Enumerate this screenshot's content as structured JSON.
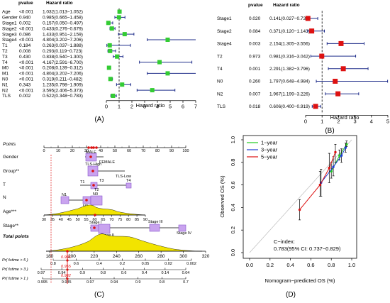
{
  "panel_labels": [
    "(A)",
    "(B)",
    "(C)",
    "(D)"
  ],
  "chart_data": [
    {
      "type": "forest",
      "panel": "(A)",
      "col_pvalue": "pvalue",
      "col_hr": "Hazard ratio",
      "xlabel": "Hazard ratio",
      "xlim": [
        0,
        7
      ],
      "xticks": [
        "0",
        "1",
        "2",
        "3",
        "4",
        "5",
        "6",
        "7"
      ],
      "ref_line": 1,
      "color_box": "#33cc33",
      "color_ci": "#1f2d8a",
      "rows": [
        {
          "name": "Age",
          "p": "<0.001",
          "hr_text": "1.032(1.013−1.052)",
          "hr": 1.032,
          "lo": 1.013,
          "hi": 1.052
        },
        {
          "name": "Gender",
          "p": "0.940",
          "hr_text": "0.985(0.665−1.458)",
          "hr": 0.985,
          "lo": 0.665,
          "hi": 1.458
        },
        {
          "name": "Stage1",
          "p": "0.002",
          "hr_text": "0.157(0.050−0.497)",
          "hr": 0.157,
          "lo": 0.05,
          "hi": 0.497
        },
        {
          "name": "Stage2",
          "p": "<0.001",
          "hr_text": "0.433(0.276−0.679)",
          "hr": 0.433,
          "lo": 0.276,
          "hi": 0.679
        },
        {
          "name": "Stage3",
          "p": "0.086",
          "hr_text": "1.433(0.951−2.159)",
          "hr": 1.433,
          "lo": 0.951,
          "hi": 2.159
        },
        {
          "name": "Stage4",
          "p": "<0.001",
          "hr_text": "4.804(3.202−7.206)",
          "hr": 4.804,
          "lo": 3.202,
          "hi": 7.206
        },
        {
          "name": "T1",
          "p": "0.184",
          "hr_text": "0.263(0.037−1.888)",
          "hr": 0.263,
          "lo": 0.037,
          "hi": 1.888
        },
        {
          "name": "T2",
          "p": "0.008",
          "hr_text": "0.293(0.119−0.723)",
          "hr": 0.293,
          "lo": 0.119,
          "hi": 0.723
        },
        {
          "name": "T3",
          "p": "0.430",
          "hr_text": "0.838(0.540−1.300)",
          "hr": 0.838,
          "lo": 0.54,
          "hi": 1.3
        },
        {
          "name": "T4",
          "p": "<0.001",
          "hr_text": "4.167(2.591−6.700)",
          "hr": 4.167,
          "lo": 2.591,
          "hi": 6.7
        },
        {
          "name": "M0",
          "p": "<0.001",
          "hr_text": "0.208(0.139−0.312)",
          "hr": 0.208,
          "lo": 0.139,
          "hi": 0.312
        },
        {
          "name": "M1",
          "p": "<0.001",
          "hr_text": "4.804(3.202−7.206)",
          "hr": 4.804,
          "lo": 3.202,
          "hi": 7.206
        },
        {
          "name": "N0",
          "p": "<0.001",
          "hr_text": "0.319(0.211−0.482)",
          "hr": 0.319,
          "lo": 0.211,
          "hi": 0.482
        },
        {
          "name": "N1",
          "p": "0.343",
          "hr_text": "1.235(0.798−1.909)",
          "hr": 1.235,
          "lo": 0.798,
          "hi": 1.909
        },
        {
          "name": "N2",
          "p": "<0.001",
          "hr_text": "3.595(2.406−5.373)",
          "hr": 3.595,
          "lo": 2.406,
          "hi": 5.373
        },
        {
          "name": "TLS",
          "p": "0.002",
          "hr_text": "0.522(0.348−0.783)",
          "hr": 0.522,
          "lo": 0.348,
          "hi": 0.783
        }
      ]
    },
    {
      "type": "forest",
      "panel": "(B)",
      "col_pvalue": "pvalue",
      "col_hr": "Hazard ratio",
      "xlabel": "Hazard ratio",
      "xlim": [
        0,
        5
      ],
      "xticks": [
        "0",
        "1",
        "2",
        "3",
        "4",
        "5"
      ],
      "ref_line": 1,
      "color_box": "#dd1111",
      "color_ci": "#1f2d8a",
      "rows": [
        {
          "name": "Stage1",
          "p": "0.020",
          "hr_text": "0.141(0.027−0.737)",
          "hr": 0.141,
          "lo": 0.027,
          "hi": 0.737
        },
        {
          "name": "Stage2",
          "p": "0.084",
          "hr_text": "0.371(0.120−1.143)",
          "hr": 0.371,
          "lo": 0.12,
          "hi": 1.143
        },
        {
          "name": "Stage4",
          "p": "0.003",
          "hr_text": "2.154(1.305−3.556)",
          "hr": 2.154,
          "lo": 1.305,
          "hi": 3.556
        },
        {
          "name": "T2",
          "p": "0.973",
          "hr_text": "0.981(0.316−3.042)",
          "hr": 0.981,
          "lo": 0.316,
          "hi": 3.042
        },
        {
          "name": "T4",
          "p": "0.001",
          "hr_text": "2.291(1.382−3.796)",
          "hr": 2.291,
          "lo": 1.382,
          "hi": 3.796
        },
        {
          "name": "N0",
          "p": "0.260",
          "hr_text": "1.797(0.648−4.984)",
          "hr": 1.797,
          "lo": 0.648,
          "hi": 4.984
        },
        {
          "name": "N2",
          "p": "0.007",
          "hr_text": "1.967(1.199−3.226)",
          "hr": 1.967,
          "lo": 1.199,
          "hi": 3.226
        },
        {
          "name": "TLS",
          "p": "0.018",
          "hr_text": "0.606(0.400−0.919)",
          "hr": 0.606,
          "lo": 0.4,
          "hi": 0.919
        }
      ]
    },
    {
      "type": "nomogram",
      "panel": "(C)",
      "points_label": "Points",
      "points_ticks": [
        "0",
        "10",
        "20",
        "30",
        "40",
        "50",
        "60",
        "70",
        "80",
        "90",
        "100"
      ],
      "rows": [
        {
          "name": "Gender",
          "labels": [
            "MALE",
            "FEMALE"
          ]
        },
        {
          "name": "Group**",
          "labels": [
            "TLS-High",
            "TLS-Low"
          ]
        },
        {
          "name": "T",
          "labels": [
            "T1",
            "T2",
            "T3",
            "T4"
          ]
        },
        {
          "name": "N",
          "labels": [
            "N1",
            "N2",
            "N0"
          ]
        },
        {
          "name": "Age***",
          "labels": [
            "30",
            "35",
            "40",
            "45",
            "50",
            "55",
            "60",
            "65",
            "70",
            "75",
            "80",
            "85",
            "90"
          ]
        },
        {
          "name": "Stage**",
          "labels": [
            "Stage I",
            "Stage II",
            "Stage III",
            "Stage IV"
          ]
        }
      ],
      "total_label": "Total points",
      "total_ticks": [
        "180",
        "200",
        "220",
        "240",
        "260",
        "280",
        "300",
        "320"
      ],
      "prob_rows": [
        {
          "name": "Pr( futime > 5 )",
          "ticks": [
            "0.8",
            "0.6",
            "0.4",
            "0.2",
            "0.05",
            "0.02",
            "0.002"
          ],
          "value": "0.905"
        },
        {
          "name": "Pr( futime > 3 )",
          "ticks": [
            "0.97",
            "0.94",
            "0.9",
            "0.8",
            "0.6",
            "0.4",
            "0.14",
            "0.04"
          ],
          "value": "0.955"
        },
        {
          "name": "Pr( futime > 1 )",
          "ticks": [
            "0.995",
            "0.985",
            "0.97",
            "0.94",
            "0.9",
            "0.8",
            "0.7"
          ],
          "value": "0.982"
        }
      ]
    },
    {
      "type": "line",
      "panel": "(D)",
      "xlabel": "Nomogram−predicted OS (%)",
      "ylabel": "Observed OS (%)",
      "xlim": [
        0,
        1
      ],
      "ylim": [
        0,
        1
      ],
      "xticks": [
        "0.0",
        "0.2",
        "0.4",
        "0.6",
        "0.8",
        "1.0"
      ],
      "yticks": [
        "0.0",
        "0.2",
        "0.4",
        "0.6",
        "0.8",
        "1.0"
      ],
      "legend_position": "top-left",
      "annotation_line1": "C−index:",
      "annotation_line2": "0.783(95% CI: 0.737−0.829)",
      "series": [
        {
          "name": "1−year",
          "color": "#22cc22",
          "x": [
            0.8,
            0.88,
            0.95
          ],
          "y": [
            0.72,
            0.86,
            0.96
          ],
          "lo": [
            0.66,
            0.82,
            0.94
          ],
          "hi": [
            0.8,
            0.91,
            0.99
          ]
        },
        {
          "name": "3−year",
          "color": "#1f3dd6",
          "x": [
            0.7,
            0.82,
            0.9,
            0.94
          ],
          "y": [
            0.62,
            0.76,
            0.86,
            0.93
          ],
          "lo": [
            0.5,
            0.68,
            0.8,
            0.89
          ],
          "hi": [
            0.74,
            0.85,
            0.92,
            0.97
          ]
        },
        {
          "name": "5−year",
          "color": "#dd1111",
          "x": [
            0.49,
            0.69,
            0.78,
            0.84
          ],
          "y": [
            0.38,
            0.6,
            0.75,
            0.89
          ],
          "lo": [
            0.29,
            0.5,
            0.62,
            0.8
          ],
          "hi": [
            0.47,
            0.72,
            0.88,
            0.96
          ]
        }
      ]
    }
  ]
}
